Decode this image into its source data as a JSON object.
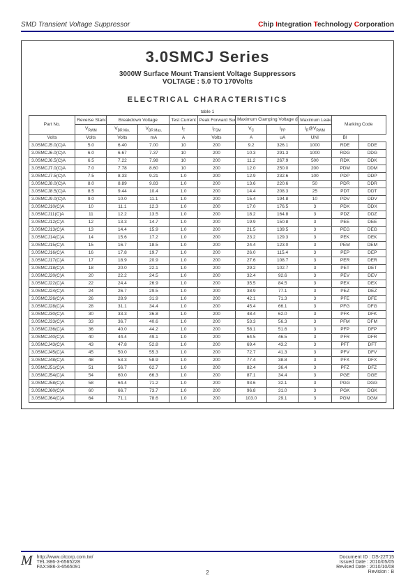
{
  "header": {
    "left": "SMD Transient Voltage Suppressor",
    "right_parts": {
      "c": "C",
      "hip": "hip ",
      "i": "I",
      "ntegration": "ntegration ",
      "t": "T",
      "echnology": "echnology ",
      "c2": "C",
      "orporation": "orporation"
    }
  },
  "title": "3.0SMCJ Series",
  "subtitle1": "3000W Surface Mount Transient Voltage Suppressors",
  "subtitle2": "VOLTAGE : 5.0 TO 170Volts",
  "section_title": "ELECTRICAL CHARACTERISTICS",
  "table_label": "table 1",
  "columns": {
    "partno": "Part No.",
    "reverse": "Reverse Stand-off Voltage",
    "breakdown": "Breakdown Voltage",
    "test": "Test Current",
    "peak": "Peak Forward Surge Current",
    "clamp": "Maximum Clamping Voltage @I",
    "leak": "Maximum Leakage Current",
    "marking": "Marking Code"
  },
  "sub_syms": {
    "vrwm": "V",
    "vrwm_sub": "RWM",
    "vbrmin": "V",
    "vbrmin_sub": "BR Min.",
    "vbrmax": "V",
    "vbrmax_sub": "BR Max.",
    "it": "I",
    "it_sub": "T",
    "ifsm": "I",
    "ifsm_sub": "FSM",
    "vc": "V",
    "vc_sub": "C",
    "ipp": "I",
    "ipp_sub": "PP",
    "ir": "I",
    "ir_sub": "R",
    "at": "@V",
    "at_sub": "RWM"
  },
  "units": {
    "volts": "Volts",
    "ma": "mA",
    "a": "A",
    "ua": "uA",
    "uni": "UNI",
    "bi": "BI"
  },
  "rows": [
    [
      "3.0SMCJ5.0(C)A",
      "5.0",
      "6.40",
      "7.00",
      "10",
      "200",
      "9.2",
      "326.1",
      "1000",
      "RDE",
      "DDE"
    ],
    [
      "3.0SMCJ6.0(C)A",
      "6.0",
      "6.67",
      "7.37",
      "10",
      "200",
      "10.3",
      "291.3",
      "1000",
      "RDG",
      "DDG"
    ],
    [
      "3.0SMCJ6.5(C)A",
      "6.5",
      "7.22",
      "7.98",
      "10",
      "200",
      "11.2",
      "267.9",
      "500",
      "RDK",
      "DDK"
    ],
    [
      "3.0SMCJ7.0(C)A",
      "7.0",
      "7.78",
      "8.60",
      "10",
      "200",
      "12.0",
      "250.0",
      "200",
      "PDM",
      "DDM"
    ],
    [
      "3.0SMCJ7.5(C)A",
      "7.5",
      "8.33",
      "9.21",
      "1.0",
      "200",
      "12.9",
      "232.6",
      "100",
      "PDP",
      "DDP"
    ],
    [
      "3.0SMCJ8.0(C)A",
      "8.0",
      "8.89",
      "9.83",
      "1.0",
      "200",
      "13.6",
      "220.6",
      "50",
      "PDR",
      "DDR"
    ],
    [
      "3.0SMCJ8.5(C)A",
      "8.5",
      "9.44",
      "10.4",
      "1.0",
      "200",
      "14.4",
      "208.3",
      "25",
      "PDT",
      "DDT"
    ],
    [
      "3.0SMCJ9.0(C)A",
      "9.0",
      "10.0",
      "11.1",
      "1.0",
      "200",
      "15.4",
      "194.8",
      "10",
      "PDV",
      "DDV"
    ],
    [
      "3.0SMCJ10(C)A",
      "10",
      "11.1",
      "12.3",
      "1.0",
      "200",
      "17.0",
      "176.5",
      "3",
      "PDX",
      "DDX"
    ],
    [
      "3.0SMCJ11(C)A",
      "11",
      "12.2",
      "13.5",
      "1.0",
      "200",
      "18.2",
      "164.8",
      "3",
      "PDZ",
      "DDZ"
    ],
    [
      "3.0SMCJ12(C)A",
      "12",
      "13.3",
      "14.7",
      "1.0",
      "200",
      "19.9",
      "150.8",
      "3",
      "PEE",
      "DEE"
    ],
    [
      "3.0SMCJ13(C)A",
      "13",
      "14.4",
      "15.9",
      "1.0",
      "200",
      "21.5",
      "139.5",
      "3",
      "PEG",
      "DEG"
    ],
    [
      "3.0SMCJ14(C)A",
      "14",
      "15.6",
      "17.2",
      "1.0",
      "200",
      "23.2",
      "129.3",
      "3",
      "PEK",
      "DEK"
    ],
    [
      "3.0SMCJ15(C)A",
      "15",
      "16.7",
      "18.5",
      "1.0",
      "200",
      "24.4",
      "123.0",
      "3",
      "PEM",
      "DEM"
    ],
    [
      "3.0SMCJ16(C)A",
      "16",
      "17.8",
      "19.7",
      "1.0",
      "200",
      "26.0",
      "115.4",
      "3",
      "PEP",
      "DEP"
    ],
    [
      "3.0SMCJ17(C)A",
      "17",
      "18.9",
      "20.9",
      "1.0",
      "200",
      "27.6",
      "108.7",
      "3",
      "PER",
      "DER"
    ],
    [
      "3.0SMCJ18(C)A",
      "18",
      "20.0",
      "22.1",
      "1.0",
      "200",
      "29.2",
      "102.7",
      "3",
      "PET",
      "DET"
    ],
    [
      "3.0SMCJ20(C)A",
      "20",
      "22.2",
      "24.5",
      "1.0",
      "200",
      "32.4",
      "92.6",
      "3",
      "PEV",
      "DEV"
    ],
    [
      "3.0SMCJ22(C)A",
      "22",
      "24.4",
      "26.9",
      "1.0",
      "200",
      "35.5",
      "84.5",
      "3",
      "PEX",
      "DEX"
    ],
    [
      "3.0SMCJ24(C)A",
      "24",
      "26.7",
      "29.5",
      "1.0",
      "200",
      "38.9",
      "77.1",
      "3",
      "PEZ",
      "DEZ"
    ],
    [
      "3.0SMCJ26(C)A",
      "26",
      "28.9",
      "31.9",
      "1.0",
      "200",
      "42.1",
      "71.3",
      "3",
      "PFE",
      "DFE"
    ],
    [
      "3.0SMCJ28(C)A",
      "28",
      "31.1",
      "34.4",
      "1.0",
      "200",
      "45.4",
      "66.1",
      "3",
      "PFG",
      "DFG"
    ],
    [
      "3.0SMCJ30(C)A",
      "30",
      "33.3",
      "36.8",
      "1.0",
      "200",
      "48.4",
      "62.0",
      "3",
      "PFK",
      "DFK"
    ],
    [
      "3.0SMCJ33(C)A",
      "33",
      "36.7",
      "40.6",
      "1.0",
      "200",
      "53.3",
      "56.3",
      "3",
      "PFM",
      "DFM"
    ],
    [
      "3.0SMCJ36(C)A",
      "36",
      "40.0",
      "44.2",
      "1.0",
      "200",
      "58.1",
      "51.6",
      "3",
      "PFP",
      "DFP"
    ],
    [
      "3.0SMCJ40(C)A",
      "40",
      "44.4",
      "49.1",
      "1.0",
      "200",
      "64.5",
      "46.5",
      "3",
      "PFR",
      "DFR"
    ],
    [
      "3.0SMCJ43(C)A",
      "43",
      "47.8",
      "52.8",
      "1.0",
      "200",
      "69.4",
      "43.2",
      "3",
      "PFT",
      "DFT"
    ],
    [
      "3.0SMCJ45(C)A",
      "45",
      "50.0",
      "55.3",
      "1.0",
      "200",
      "72.7",
      "41.3",
      "3",
      "PFV",
      "DFV"
    ],
    [
      "3.0SMCJ48(C)A",
      "48",
      "53.3",
      "58.9",
      "1.0",
      "200",
      "77.4",
      "38.8",
      "3",
      "PFX",
      "DFX"
    ],
    [
      "3.0SMCJ51(C)A",
      "51",
      "56.7",
      "62.7",
      "1.0",
      "200",
      "82.4",
      "36.4",
      "3",
      "PFZ",
      "DFZ"
    ],
    [
      "3.0SMCJ54(C)A",
      "54",
      "60.0",
      "66.3",
      "1.0",
      "200",
      "87.1",
      "34.4",
      "3",
      "PGE",
      "DGE"
    ],
    [
      "3.0SMCJ58(C)A",
      "58",
      "64.4",
      "71.2",
      "1.0",
      "200",
      "93.6",
      "32.1",
      "3",
      "PGG",
      "DGG"
    ],
    [
      "3.0SMCJ60(C)A",
      "60",
      "66.7",
      "73.7",
      "1.0",
      "200",
      "96.8",
      "31.0",
      "3",
      "PGK",
      "DGK"
    ],
    [
      "3.0SMCJ64(C)A",
      "64",
      "71.1",
      "78.6",
      "1.0",
      "200",
      "103.0",
      "29.1",
      "3",
      "PGM",
      "DGM"
    ]
  ],
  "footer": {
    "url": "http://www.citcorp.com.tw/",
    "tel": "TEL:886-3-6565228",
    "fax": "FAX:886-3-6565091",
    "page": "2",
    "docid": "Document ID : DS-22T15",
    "issued": "Issued Date : 2010/05/05",
    "revised": "Revised Date : 2010/10/08",
    "revision": "Revision : B"
  }
}
